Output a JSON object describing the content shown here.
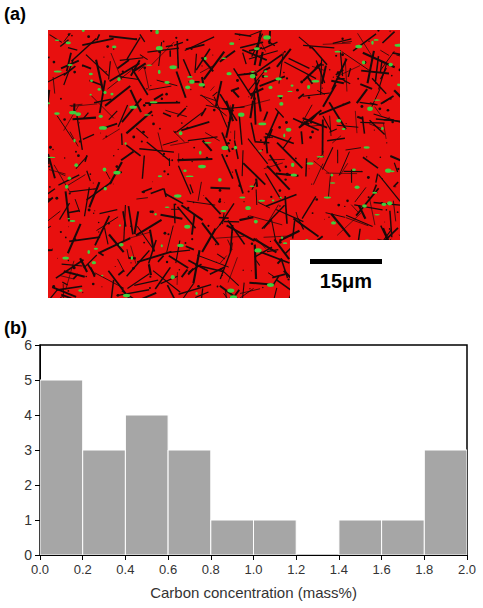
{
  "panels": {
    "a": {
      "label": "(a)",
      "scale_bar": "15μm"
    },
    "b": {
      "label": "(b)"
    }
  },
  "chart_data": {
    "type": "histogram",
    "xlabel": "Carbon concentration (mass%)",
    "bins": [
      0.0,
      0.2,
      0.4,
      0.6,
      0.8,
      1.0,
      1.2,
      1.4,
      1.6,
      1.8,
      2.0
    ],
    "values": [
      5,
      3,
      4,
      3,
      1,
      1,
      0,
      1,
      1,
      3
    ],
    "color": "#a6a6a6",
    "xlim": [
      0,
      2
    ],
    "xticks": [
      {
        "value": 0,
        "label": "0.0"
      },
      0.2,
      0.4,
      0.6,
      0.8,
      {
        "value": 1,
        "label": "1.0"
      },
      1.2,
      1.4,
      1.6,
      1.8,
      {
        "value": 2,
        "label": "2.0"
      }
    ],
    "ylim": [
      0,
      6
    ],
    "yticks": [
      0,
      1,
      2,
      3,
      4,
      5,
      6
    ],
    "grid": false
  }
}
